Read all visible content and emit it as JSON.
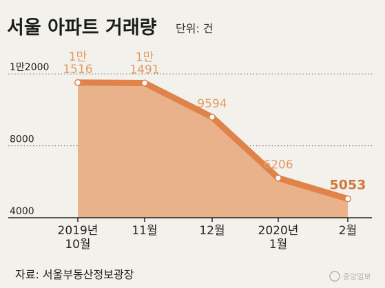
{
  "header": {
    "title": "서울 아파트 거래량",
    "unit": "단위: 건"
  },
  "source": "자료: 서울부동산정보광장",
  "watermark": "중앙일보",
  "colors": {
    "area_fill": "#eab28a",
    "line": "#e0834a",
    "label": "#e39a64",
    "label_highlight": "#d2773c",
    "grid": "#555555"
  },
  "chart_data": {
    "type": "area",
    "title": "서울 아파트 거래량",
    "unit": "단위: 건",
    "categories": [
      "2019년 10월",
      "11월",
      "12월",
      "2020년 1월",
      "2월"
    ],
    "x_tick_labels": [
      [
        "2019년",
        "10월"
      ],
      [
        "11월"
      ],
      [
        "12월"
      ],
      [
        "2020년",
        "1월"
      ],
      [
        "2월"
      ]
    ],
    "values": [
      11516,
      11491,
      9594,
      6206,
      5053
    ],
    "data_labels": [
      [
        "1만",
        "1516"
      ],
      [
        "1만",
        "1491"
      ],
      [
        "9594"
      ],
      [
        "6206"
      ],
      [
        "5053"
      ]
    ],
    "highlight_index": 4,
    "y_gridlines": [
      12000,
      8000
    ],
    "y_tick_labels": [
      "1만2000",
      "8000",
      "4000"
    ],
    "ylim": [
      4000,
      12000
    ],
    "grid": "dotted horizontal"
  }
}
